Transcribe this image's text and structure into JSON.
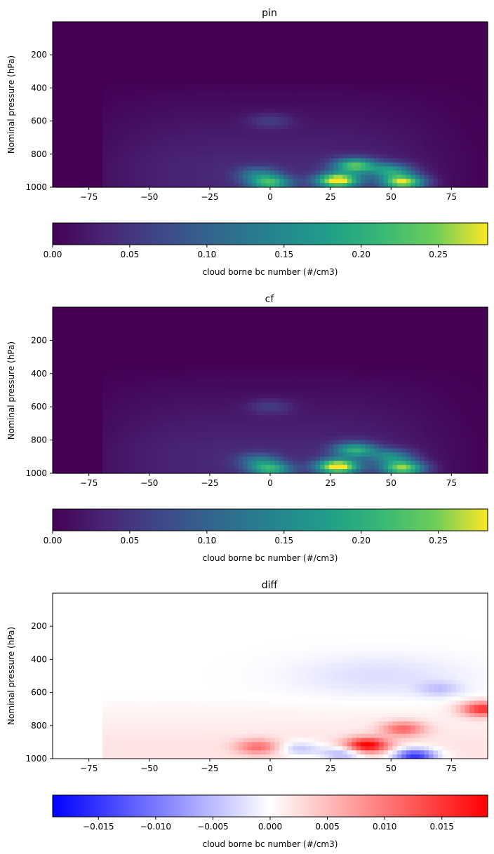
{
  "chart_data": [
    {
      "type": "heatmap",
      "title": "pin",
      "xlabel": "",
      "ylabel": "Nominal pressure (hPa)",
      "xlim": [
        -90,
        90
      ],
      "ylim": [
        1000,
        0
      ],
      "x_ticks": [
        -75,
        -50,
        -25,
        0,
        25,
        50,
        75
      ],
      "y_ticks": [
        200,
        400,
        600,
        800,
        1000
      ],
      "colormap": "viridis",
      "colorbar": {
        "label": "cloud borne bc number (#/cm3)",
        "range": [
          0,
          0.282
        ],
        "ticks": [
          0.0,
          0.05,
          0.1,
          0.15,
          0.2,
          0.25
        ],
        "tick_labels": [
          "0.00",
          "0.05",
          "0.10",
          "0.15",
          "0.20",
          "0.25"
        ]
      },
      "features": [
        {
          "lat": 0,
          "p": 975,
          "value": 0.18
        },
        {
          "lat": 28,
          "p": 960,
          "value": 0.28
        },
        {
          "lat": 35,
          "p": 870,
          "value": 0.2
        },
        {
          "lat": 55,
          "p": 970,
          "value": 0.25
        },
        {
          "lat": 50,
          "p": 900,
          "value": 0.14
        },
        {
          "lat": -5,
          "p": 920,
          "value": 0.09
        },
        {
          "lat": 0,
          "p": 600,
          "value": 0.04
        }
      ]
    },
    {
      "type": "heatmap",
      "title": "cf",
      "xlabel": "",
      "ylabel": "Nominal pressure (hPa)",
      "xlim": [
        -90,
        90
      ],
      "ylim": [
        1000,
        0
      ],
      "x_ticks": [
        -75,
        -50,
        -25,
        0,
        25,
        50,
        75
      ],
      "y_ticks": [
        200,
        400,
        600,
        800,
        1000
      ],
      "colormap": "viridis",
      "colorbar": {
        "label": "cloud borne bc number (#/cm3)",
        "range": [
          0,
          0.282
        ],
        "ticks": [
          0.0,
          0.05,
          0.1,
          0.15,
          0.2,
          0.25
        ],
        "tick_labels": [
          "0.00",
          "0.05",
          "0.10",
          "0.15",
          "0.20",
          "0.25"
        ]
      },
      "features": [
        {
          "lat": 0,
          "p": 975,
          "value": 0.17
        },
        {
          "lat": 28,
          "p": 960,
          "value": 0.28
        },
        {
          "lat": 35,
          "p": 860,
          "value": 0.17
        },
        {
          "lat": 55,
          "p": 970,
          "value": 0.23
        },
        {
          "lat": 50,
          "p": 900,
          "value": 0.12
        },
        {
          "lat": -5,
          "p": 920,
          "value": 0.08
        },
        {
          "lat": 0,
          "p": 600,
          "value": 0.04
        }
      ]
    },
    {
      "type": "heatmap",
      "title": "diff",
      "xlabel": "",
      "ylabel": "Nominal pressure (hPa)",
      "xlim": [
        -90,
        90
      ],
      "ylim": [
        1000,
        0
      ],
      "x_ticks": [
        -75,
        -50,
        -25,
        0,
        25,
        50,
        75
      ],
      "y_ticks": [
        200,
        400,
        600,
        800,
        1000
      ],
      "colormap": "bwr",
      "colorbar": {
        "label": "cloud borne bc number (#/cm3)",
        "range": [
          -0.019,
          0.019
        ],
        "ticks": [
          -0.015,
          -0.01,
          -0.005,
          0.0,
          0.005,
          0.01,
          0.015
        ],
        "tick_labels": [
          "−0.015",
          "−0.010",
          "−0.005",
          "0.000",
          "0.005",
          "0.010",
          "0.015"
        ]
      },
      "features": [
        {
          "lat": 40,
          "p": 920,
          "value": 0.018
        },
        {
          "lat": 55,
          "p": 820,
          "value": 0.01
        },
        {
          "lat": 88,
          "p": 700,
          "value": 0.015
        },
        {
          "lat": 60,
          "p": 985,
          "value": -0.017
        },
        {
          "lat": 30,
          "p": 970,
          "value": -0.008
        },
        {
          "lat": -5,
          "p": 930,
          "value": 0.009
        },
        {
          "lat": 12,
          "p": 940,
          "value": -0.006
        },
        {
          "lat": 70,
          "p": 580,
          "value": -0.004
        }
      ]
    }
  ]
}
